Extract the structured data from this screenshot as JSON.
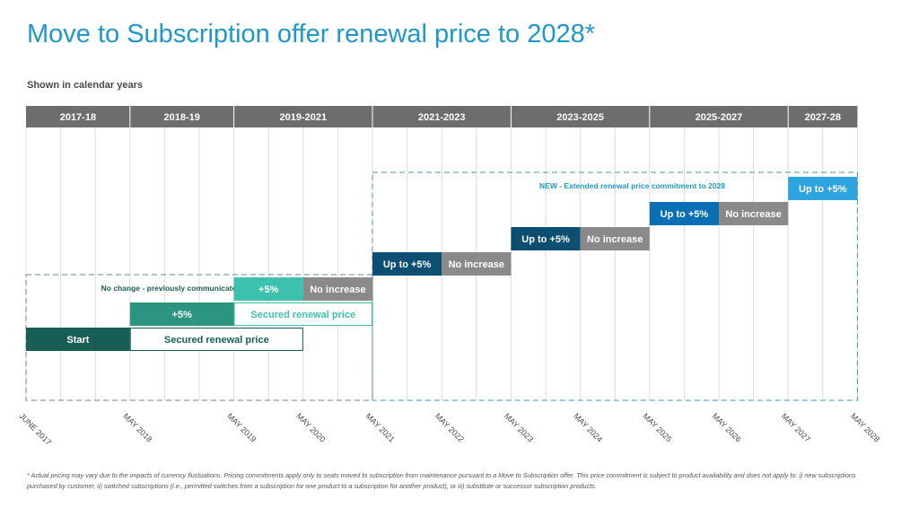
{
  "title": "Move to Subscription offer renewal price to 2028*",
  "subtitle": "Shown in calendar years",
  "footnote": "* Actual pricing may vary due to the impacts of currency fluctuations. Pricing commitments apply only to seats moved to subscription from maintenance pursuant to a Move to Subscription offer. This price commitment is subject to product availability and does not apply to: i) new subscriptions purchased by customer, ii) switched subscriptions (i.e., permitted switches from a subscription for one product to a subscription for another product), or iii) substitute or successor subscription products.",
  "colors": {
    "header": "#6d6d6d",
    "dark_teal": "#175e54",
    "mid_teal": "#2b9580",
    "light_teal": "#3ec1ac",
    "navy": "#0d4f73",
    "blue": "#0a6fb4",
    "light_blue": "#2da3df",
    "gray": "#8a8a8a",
    "title_blue": "#1f98c8"
  },
  "chart_data": {
    "type": "gantt",
    "period_headers": [
      {
        "label": "2017-18",
        "start": 0,
        "end": 3
      },
      {
        "label": "2018-19",
        "start": 3,
        "end": 6
      },
      {
        "label": "2019-2021",
        "start": 6,
        "end": 10
      },
      {
        "label": "2021-2023",
        "start": 10,
        "end": 14
      },
      {
        "label": "2023-2025",
        "start": 14,
        "end": 18
      },
      {
        "label": "2025-2027",
        "start": 18,
        "end": 22
      },
      {
        "label": "2027-28",
        "start": 22,
        "end": 24
      }
    ],
    "x_ticks": [
      {
        "label": "JUNE 2017",
        "pos": 0
      },
      {
        "label": "MAY 2018",
        "pos": 3
      },
      {
        "label": "MAY 2019",
        "pos": 6
      },
      {
        "label": "MAY 2020",
        "pos": 8
      },
      {
        "label": "MAY 2021",
        "pos": 10
      },
      {
        "label": "MAY 2022",
        "pos": 12
      },
      {
        "label": "MAY 2023",
        "pos": 14
      },
      {
        "label": "MAY 2024",
        "pos": 16
      },
      {
        "label": "MAY 2025",
        "pos": 18
      },
      {
        "label": "MAY 2026",
        "pos": 20
      },
      {
        "label": "MAY 2027",
        "pos": 22
      },
      {
        "label": "MAY 2028",
        "pos": 24
      }
    ],
    "regions": [
      {
        "label": "No change - previously communicated guidance",
        "start": 0,
        "end": 10,
        "style": "dark_teal"
      },
      {
        "label": "NEW - Extended renewal price commitment to 2028",
        "start": 10,
        "end": 24,
        "style": "light_blue"
      }
    ],
    "bars": [
      {
        "label": "Start",
        "start": 0,
        "end": 3,
        "row": 0,
        "style": "dark_teal",
        "filled": true
      },
      {
        "label": "Secured renewal price",
        "start": 3,
        "end": 8,
        "row": 0,
        "style": "dark_teal",
        "filled": false
      },
      {
        "label": "+5%",
        "start": 3,
        "end": 6,
        "row": 1,
        "style": "mid_teal",
        "filled": true
      },
      {
        "label": "Secured renewal price",
        "start": 6,
        "end": 10,
        "row": 1,
        "style": "light_teal",
        "filled": false
      },
      {
        "label": "+5%",
        "start": 6,
        "end": 8,
        "row": 2,
        "style": "light_teal",
        "filled": true
      },
      {
        "label": "No increase",
        "start": 8,
        "end": 10,
        "row": 2,
        "style": "gray",
        "filled": true
      },
      {
        "label": "Up to +5%",
        "start": 10,
        "end": 12,
        "row": 3,
        "style": "navy",
        "filled": true
      },
      {
        "label": "No increase",
        "start": 12,
        "end": 14,
        "row": 3,
        "style": "gray",
        "filled": true
      },
      {
        "label": "Up to +5%",
        "start": 14,
        "end": 16,
        "row": 4,
        "style": "navy",
        "filled": true
      },
      {
        "label": "No increase",
        "start": 16,
        "end": 18,
        "row": 4,
        "style": "gray",
        "filled": true
      },
      {
        "label": "Up to +5%",
        "start": 18,
        "end": 20,
        "row": 5,
        "style": "blue",
        "filled": true
      },
      {
        "label": "No increase",
        "start": 20,
        "end": 22,
        "row": 5,
        "style": "gray",
        "filled": true
      },
      {
        "label": "Up to +5%",
        "start": 22,
        "end": 24,
        "row": 6,
        "style": "light_blue",
        "filled": true
      }
    ]
  }
}
